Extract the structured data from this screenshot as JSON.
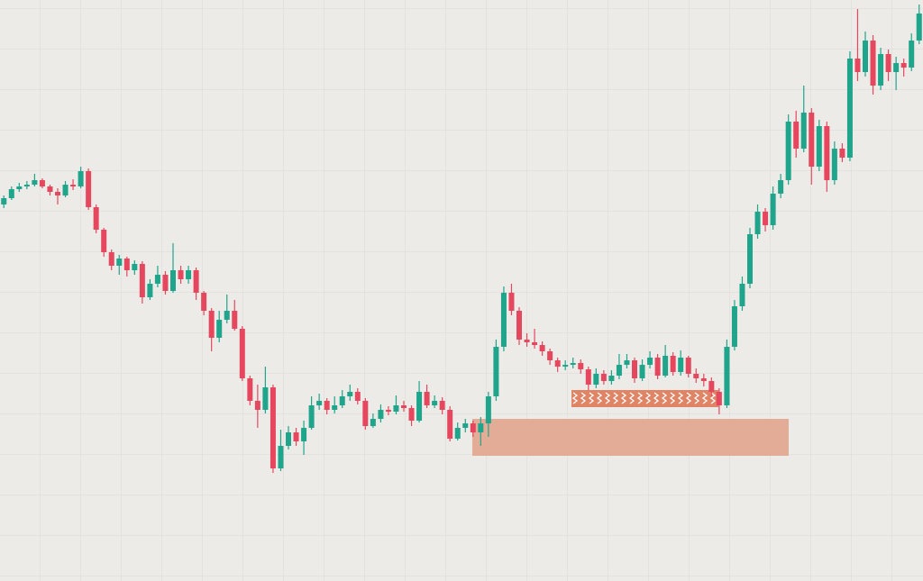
{
  "chart_data": {
    "type": "candlestick",
    "ylim": [
      0,
      645
    ],
    "up_color": "#1fa58b",
    "down_color": "#e5485e",
    "series": [
      {
        "ohlc": [
          [
            418,
            428,
            414,
            425
          ],
          [
            425,
            438,
            423,
            435
          ],
          [
            435,
            442,
            432,
            438
          ],
          [
            438,
            444,
            435,
            440
          ],
          [
            440,
            452,
            438,
            445
          ],
          [
            445,
            447,
            436,
            438
          ],
          [
            438,
            440,
            428,
            432
          ],
          [
            432,
            436,
            418,
            428
          ],
          [
            428,
            444,
            426,
            440
          ],
          [
            440,
            446,
            434,
            438
          ],
          [
            438,
            460,
            436,
            455
          ],
          [
            455,
            458,
            412,
            415
          ],
          [
            415,
            418,
            386,
            390
          ],
          [
            390,
            392,
            360,
            365
          ],
          [
            365,
            368,
            345,
            350
          ],
          [
            350,
            362,
            340,
            358
          ],
          [
            358,
            360,
            338,
            345
          ],
          [
            345,
            356,
            340,
            352
          ],
          [
            352,
            355,
            308,
            315
          ],
          [
            315,
            335,
            312,
            330
          ],
          [
            330,
            350,
            326,
            340
          ],
          [
            340,
            344,
            318,
            322
          ],
          [
            322,
            375,
            320,
            345
          ],
          [
            345,
            350,
            330,
            335
          ],
          [
            335,
            350,
            330,
            345
          ],
          [
            345,
            348,
            312,
            320
          ],
          [
            320,
            322,
            295,
            300
          ],
          [
            300,
            303,
            255,
            270
          ],
          [
            270,
            300,
            265,
            290
          ],
          [
            290,
            318,
            286,
            300
          ],
          [
            300,
            312,
            278,
            280
          ],
          [
            280,
            283,
            222,
            225
          ],
          [
            225,
            228,
            195,
            200
          ],
          [
            200,
            218,
            170,
            190
          ],
          [
            190,
            238,
            186,
            215
          ],
          [
            215,
            218,
            120,
            125
          ],
          [
            125,
            168,
            122,
            150
          ],
          [
            150,
            172,
            146,
            165
          ],
          [
            165,
            170,
            150,
            155
          ],
          [
            155,
            178,
            140,
            170
          ],
          [
            170,
            205,
            168,
            195
          ],
          [
            195,
            208,
            190,
            200
          ],
          [
            200,
            203,
            185,
            190
          ],
          [
            190,
            205,
            186,
            195
          ],
          [
            195,
            212,
            192,
            205
          ],
          [
            205,
            218,
            200,
            210
          ],
          [
            210,
            214,
            196,
            200
          ],
          [
            200,
            203,
            168,
            172
          ],
          [
            172,
            186,
            170,
            180
          ],
          [
            180,
            196,
            176,
            190
          ],
          [
            190,
            194,
            184,
            188
          ],
          [
            188,
            206,
            185,
            195
          ],
          [
            195,
            200,
            188,
            192
          ],
          [
            192,
            195,
            172,
            178
          ],
          [
            178,
            222,
            176,
            210
          ],
          [
            210,
            218,
            192,
            195
          ],
          [
            195,
            206,
            192,
            200
          ],
          [
            200,
            204,
            185,
            190
          ],
          [
            190,
            194,
            155,
            158
          ],
          [
            158,
            176,
            156,
            170
          ],
          [
            170,
            180,
            165,
            175
          ],
          [
            175,
            178,
            160,
            165
          ],
          [
            165,
            182,
            150,
            175
          ],
          [
            175,
            210,
            160,
            205
          ],
          [
            205,
            268,
            200,
            260
          ],
          [
            260,
            327,
            255,
            320
          ],
          [
            320,
            330,
            295,
            300
          ],
          [
            300,
            304,
            262,
            268
          ],
          [
            268,
            275,
            260,
            265
          ],
          [
            265,
            280,
            258,
            262
          ],
          [
            262,
            266,
            250,
            255
          ],
          [
            255,
            258,
            240,
            245
          ],
          [
            245,
            248,
            232,
            238
          ],
          [
            238,
            245,
            234,
            240
          ],
          [
            240,
            248,
            236,
            242
          ],
          [
            242,
            246,
            230,
            235
          ],
          [
            235,
            238,
            212,
            218
          ],
          [
            218,
            236,
            214,
            230
          ],
          [
            230,
            234,
            218,
            222
          ],
          [
            222,
            234,
            218,
            228
          ],
          [
            228,
            252,
            224,
            240
          ],
          [
            240,
            252,
            236,
            245
          ],
          [
            245,
            248,
            220,
            225
          ],
          [
            225,
            246,
            222,
            240
          ],
          [
            240,
            255,
            236,
            248
          ],
          [
            248,
            252,
            224,
            228
          ],
          [
            228,
            262,
            226,
            250
          ],
          [
            250,
            254,
            228,
            232
          ],
          [
            232,
            256,
            228,
            248
          ],
          [
            248,
            250,
            226,
            230
          ],
          [
            230,
            236,
            220,
            225
          ],
          [
            225,
            230,
            216,
            222
          ],
          [
            222,
            226,
            205,
            210
          ],
          [
            210,
            214,
            185,
            195
          ],
          [
            195,
            268,
            192,
            260
          ],
          [
            260,
            312,
            256,
            305
          ],
          [
            305,
            338,
            300,
            330
          ],
          [
            330,
            392,
            325,
            385
          ],
          [
            385,
            418,
            380,
            410
          ],
          [
            410,
            414,
            388,
            395
          ],
          [
            395,
            438,
            390,
            430
          ],
          [
            430,
            452,
            425,
            445
          ],
          [
            445,
            518,
            440,
            510
          ],
          [
            510,
            522,
            470,
            480
          ],
          [
            480,
            550,
            476,
            520
          ],
          [
            520,
            525,
            440,
            460
          ],
          [
            460,
            512,
            455,
            505
          ],
          [
            505,
            510,
            432,
            445
          ],
          [
            445,
            488,
            440,
            480
          ],
          [
            480,
            486,
            465,
            470
          ],
          [
            470,
            588,
            466,
            580
          ],
          [
            580,
            635,
            555,
            565
          ],
          [
            565,
            610,
            560,
            600
          ],
          [
            600,
            606,
            540,
            550
          ],
          [
            550,
            592,
            545,
            585
          ],
          [
            585,
            590,
            555,
            565
          ],
          [
            565,
            582,
            545,
            575
          ],
          [
            575,
            580,
            560,
            570
          ],
          [
            570,
            608,
            566,
            600
          ],
          [
            600,
            640,
            596,
            630
          ]
        ]
      }
    ]
  }
}
